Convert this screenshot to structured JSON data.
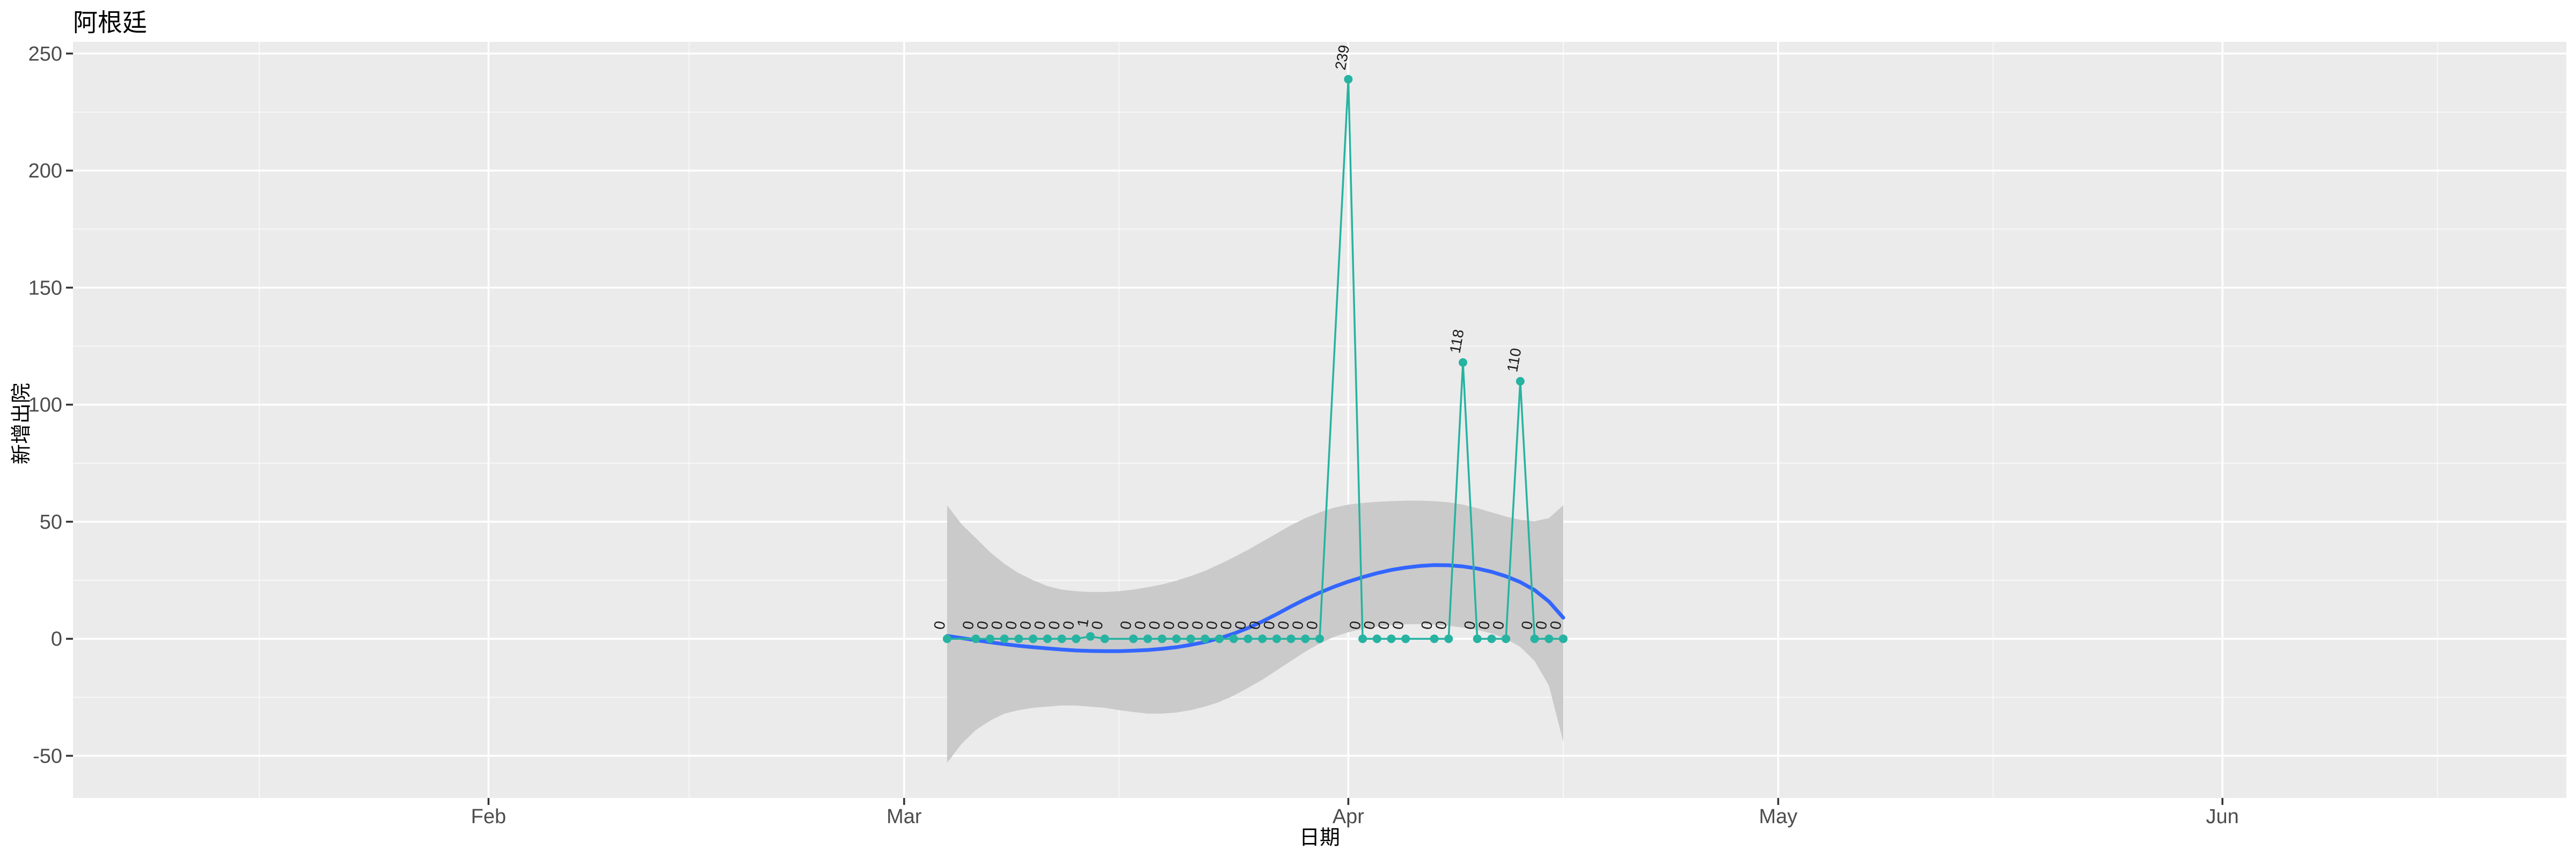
{
  "chart_data": {
    "type": "line",
    "title": "阿根廷",
    "xlabel": "日期",
    "ylabel": "新增出院",
    "x_range": [
      "2020-01-03",
      "2020-06-25"
    ],
    "ylim": [
      -68,
      255
    ],
    "grid": "on",
    "legend": "none",
    "x_axis": {
      "ticks": [
        {
          "date": "2020-02-01",
          "label": "Feb"
        },
        {
          "date": "2020-03-01",
          "label": "Mar"
        },
        {
          "date": "2020-04-01",
          "label": "Apr"
        },
        {
          "date": "2020-05-01",
          "label": "May"
        },
        {
          "date": "2020-06-01",
          "label": "Jun"
        }
      ],
      "minor_dates": [
        "2020-01-16",
        "2020-02-15",
        "2020-03-16",
        "2020-04-16",
        "2020-05-16",
        "2020-06-16"
      ]
    },
    "y_axis": {
      "ticks": [
        {
          "value": -50,
          "label": "-50"
        },
        {
          "value": 0,
          "label": "0"
        },
        {
          "value": 50,
          "label": "50"
        },
        {
          "value": 100,
          "label": "100"
        },
        {
          "value": 150,
          "label": "150"
        },
        {
          "value": 200,
          "label": "200"
        },
        {
          "value": 250,
          "label": "250"
        }
      ],
      "minor_values": [
        -25,
        25,
        75,
        125,
        175,
        225
      ]
    },
    "series": {
      "name": "daily-new-discharges",
      "points": [
        [
          "2020-03-04",
          0
        ],
        [
          "2020-03-06",
          0
        ],
        [
          "2020-03-07",
          0
        ],
        [
          "2020-03-08",
          0
        ],
        [
          "2020-03-09",
          0
        ],
        [
          "2020-03-10",
          0
        ],
        [
          "2020-03-11",
          0
        ],
        [
          "2020-03-12",
          0
        ],
        [
          "2020-03-13",
          0
        ],
        [
          "2020-03-14",
          1
        ],
        [
          "2020-03-15",
          0
        ],
        [
          "2020-03-17",
          0
        ],
        [
          "2020-03-18",
          0
        ],
        [
          "2020-03-19",
          0
        ],
        [
          "2020-03-20",
          0
        ],
        [
          "2020-03-21",
          0
        ],
        [
          "2020-03-22",
          0
        ],
        [
          "2020-03-23",
          0
        ],
        [
          "2020-03-24",
          0
        ],
        [
          "2020-03-25",
          0
        ],
        [
          "2020-03-26",
          0
        ],
        [
          "2020-03-27",
          0
        ],
        [
          "2020-03-28",
          0
        ],
        [
          "2020-03-29",
          0
        ],
        [
          "2020-03-30",
          0
        ],
        [
          "2020-04-01",
          239
        ],
        [
          "2020-04-02",
          0
        ],
        [
          "2020-04-03",
          0
        ],
        [
          "2020-04-04",
          0
        ],
        [
          "2020-04-05",
          0
        ],
        [
          "2020-04-07",
          0
        ],
        [
          "2020-04-08",
          0
        ],
        [
          "2020-04-09",
          118
        ],
        [
          "2020-04-10",
          0
        ],
        [
          "2020-04-11",
          0
        ],
        [
          "2020-04-12",
          0
        ],
        [
          "2020-04-13",
          110
        ],
        [
          "2020-04-14",
          0
        ],
        [
          "2020-04-15",
          0
        ],
        [
          "2020-04-16",
          0
        ]
      ],
      "point_labels_rotated_deg": -80
    },
    "smooth": {
      "name": "loess-smooth",
      "points": [
        [
          "2020-03-04",
          1.2
        ],
        [
          "2020-03-05",
          0.3
        ],
        [
          "2020-03-06",
          -0.6
        ],
        [
          "2020-03-07",
          -1.5
        ],
        [
          "2020-03-08",
          -2.3
        ],
        [
          "2020-03-09",
          -3.0
        ],
        [
          "2020-03-10",
          -3.6
        ],
        [
          "2020-03-11",
          -4.1
        ],
        [
          "2020-03-12",
          -4.6
        ],
        [
          "2020-03-13",
          -5.0
        ],
        [
          "2020-03-14",
          -5.2
        ],
        [
          "2020-03-15",
          -5.3
        ],
        [
          "2020-03-16",
          -5.3
        ],
        [
          "2020-03-17",
          -5.1
        ],
        [
          "2020-03-18",
          -4.8
        ],
        [
          "2020-03-19",
          -4.3
        ],
        [
          "2020-03-20",
          -3.6
        ],
        [
          "2020-03-21",
          -2.6
        ],
        [
          "2020-03-22",
          -1.4
        ],
        [
          "2020-03-23",
          0.2
        ],
        [
          "2020-03-24",
          2.2
        ],
        [
          "2020-03-25",
          4.6
        ],
        [
          "2020-03-26",
          7.4
        ],
        [
          "2020-03-27",
          10.5
        ],
        [
          "2020-03-28",
          13.8
        ],
        [
          "2020-03-29",
          16.9
        ],
        [
          "2020-03-30",
          19.7
        ],
        [
          "2020-03-31",
          22.2
        ],
        [
          "2020-04-01",
          24.4
        ],
        [
          "2020-04-02",
          26.3
        ],
        [
          "2020-04-03",
          28.0
        ],
        [
          "2020-04-04",
          29.4
        ],
        [
          "2020-04-05",
          30.4
        ],
        [
          "2020-04-06",
          31.1
        ],
        [
          "2020-04-07",
          31.5
        ],
        [
          "2020-04-08",
          31.4
        ],
        [
          "2020-04-09",
          30.9
        ],
        [
          "2020-04-10",
          30.0
        ],
        [
          "2020-04-11",
          28.6
        ],
        [
          "2020-04-12",
          26.7
        ],
        [
          "2020-04-13",
          24.2
        ],
        [
          "2020-04-14",
          20.8
        ],
        [
          "2020-04-15",
          15.9
        ],
        [
          "2020-04-16",
          9.0
        ]
      ]
    },
    "confidence_band": [
      [
        "2020-03-04",
        57,
        -53
      ],
      [
        "2020-03-05",
        49,
        -45
      ],
      [
        "2020-03-06",
        43,
        -39
      ],
      [
        "2020-03-07",
        37,
        -35
      ],
      [
        "2020-03-08",
        32,
        -32
      ],
      [
        "2020-03-09",
        28,
        -30.5
      ],
      [
        "2020-03-10",
        25,
        -29.5
      ],
      [
        "2020-03-11",
        22.5,
        -29
      ],
      [
        "2020-03-12",
        21,
        -28.5
      ],
      [
        "2020-03-13",
        20.3,
        -28.5
      ],
      [
        "2020-03-14",
        20,
        -29
      ],
      [
        "2020-03-15",
        20,
        -29.5
      ],
      [
        "2020-03-16",
        20.3,
        -30.5
      ],
      [
        "2020-03-17",
        21,
        -31.3
      ],
      [
        "2020-03-18",
        22,
        -32
      ],
      [
        "2020-03-19",
        23.2,
        -32
      ],
      [
        "2020-03-20",
        24.8,
        -31.5
      ],
      [
        "2020-03-21",
        26.8,
        -30.5
      ],
      [
        "2020-03-22",
        29,
        -29
      ],
      [
        "2020-03-23",
        31.8,
        -27
      ],
      [
        "2020-03-24",
        34.8,
        -24.3
      ],
      [
        "2020-03-25",
        38,
        -21
      ],
      [
        "2020-03-26",
        41.5,
        -17.5
      ],
      [
        "2020-03-27",
        45,
        -13.5
      ],
      [
        "2020-03-28",
        48.5,
        -9.5
      ],
      [
        "2020-03-29",
        51.5,
        -5.5
      ],
      [
        "2020-03-30",
        54,
        -2
      ],
      [
        "2020-03-31",
        56,
        0.8
      ],
      [
        "2020-04-01",
        57.3,
        2.8
      ],
      [
        "2020-04-02",
        58,
        4.2
      ],
      [
        "2020-04-03",
        58.5,
        5.2
      ],
      [
        "2020-04-04",
        58.8,
        5.8
      ],
      [
        "2020-04-05",
        59,
        6.2
      ],
      [
        "2020-04-06",
        59,
        6.3
      ],
      [
        "2020-04-07",
        58.8,
        6
      ],
      [
        "2020-04-08",
        58.3,
        5.5
      ],
      [
        "2020-04-09",
        57.3,
        4.8
      ],
      [
        "2020-04-10",
        55.8,
        3.8
      ],
      [
        "2020-04-11",
        54,
        2.3
      ],
      [
        "2020-04-12",
        52.2,
        0
      ],
      [
        "2020-04-13",
        50.8,
        -3.5
      ],
      [
        "2020-04-14",
        50.2,
        -9.5
      ],
      [
        "2020-04-15",
        51.5,
        -20
      ],
      [
        "2020-04-16",
        57,
        -44
      ]
    ],
    "colors": {
      "series_line": "#26B3A1",
      "series_point": "#26B3A1",
      "smooth_line": "#3366FF",
      "band": "#CACACA",
      "panel_background": "#EBEBEB",
      "grid_major": "#FFFFFF",
      "grid_minor": "#FFFFFF",
      "tick_label": "#4D4D4D",
      "tick_mark": "#333333",
      "data_label": "#1A1A1A",
      "title_text": "#000000"
    }
  }
}
